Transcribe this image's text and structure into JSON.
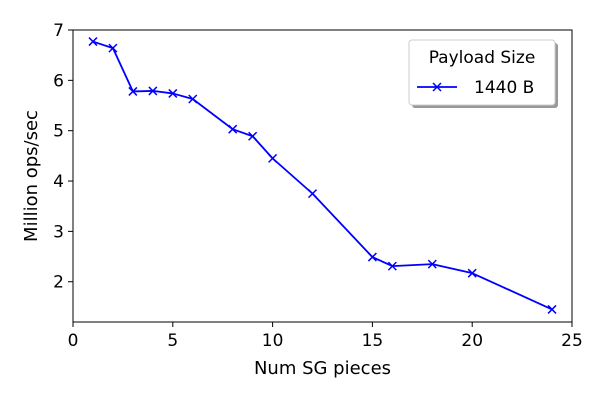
{
  "chart_data": {
    "type": "line",
    "xlabel": "Num SG pieces",
    "ylabel": "Million ops/sec",
    "xlim": [
      0,
      25
    ],
    "ylim": [
      1.2,
      7.0
    ],
    "xticks": [
      0,
      5,
      10,
      15,
      20,
      25
    ],
    "yticks": [
      2,
      3,
      4,
      5,
      6,
      7
    ],
    "grid": false,
    "legend": {
      "title": "Payload Size",
      "placement": "top-right"
    },
    "series": [
      {
        "name": "1440 B",
        "color": "#0000ff",
        "marker": "x",
        "x": [
          1,
          2,
          3,
          4,
          5,
          6,
          8,
          9,
          10,
          12,
          15,
          16,
          18,
          20,
          24
        ],
        "y": [
          6.77,
          6.64,
          5.78,
          5.79,
          5.74,
          5.63,
          5.03,
          4.89,
          4.45,
          3.75,
          2.49,
          2.31,
          2.35,
          2.17,
          1.45
        ]
      }
    ]
  }
}
